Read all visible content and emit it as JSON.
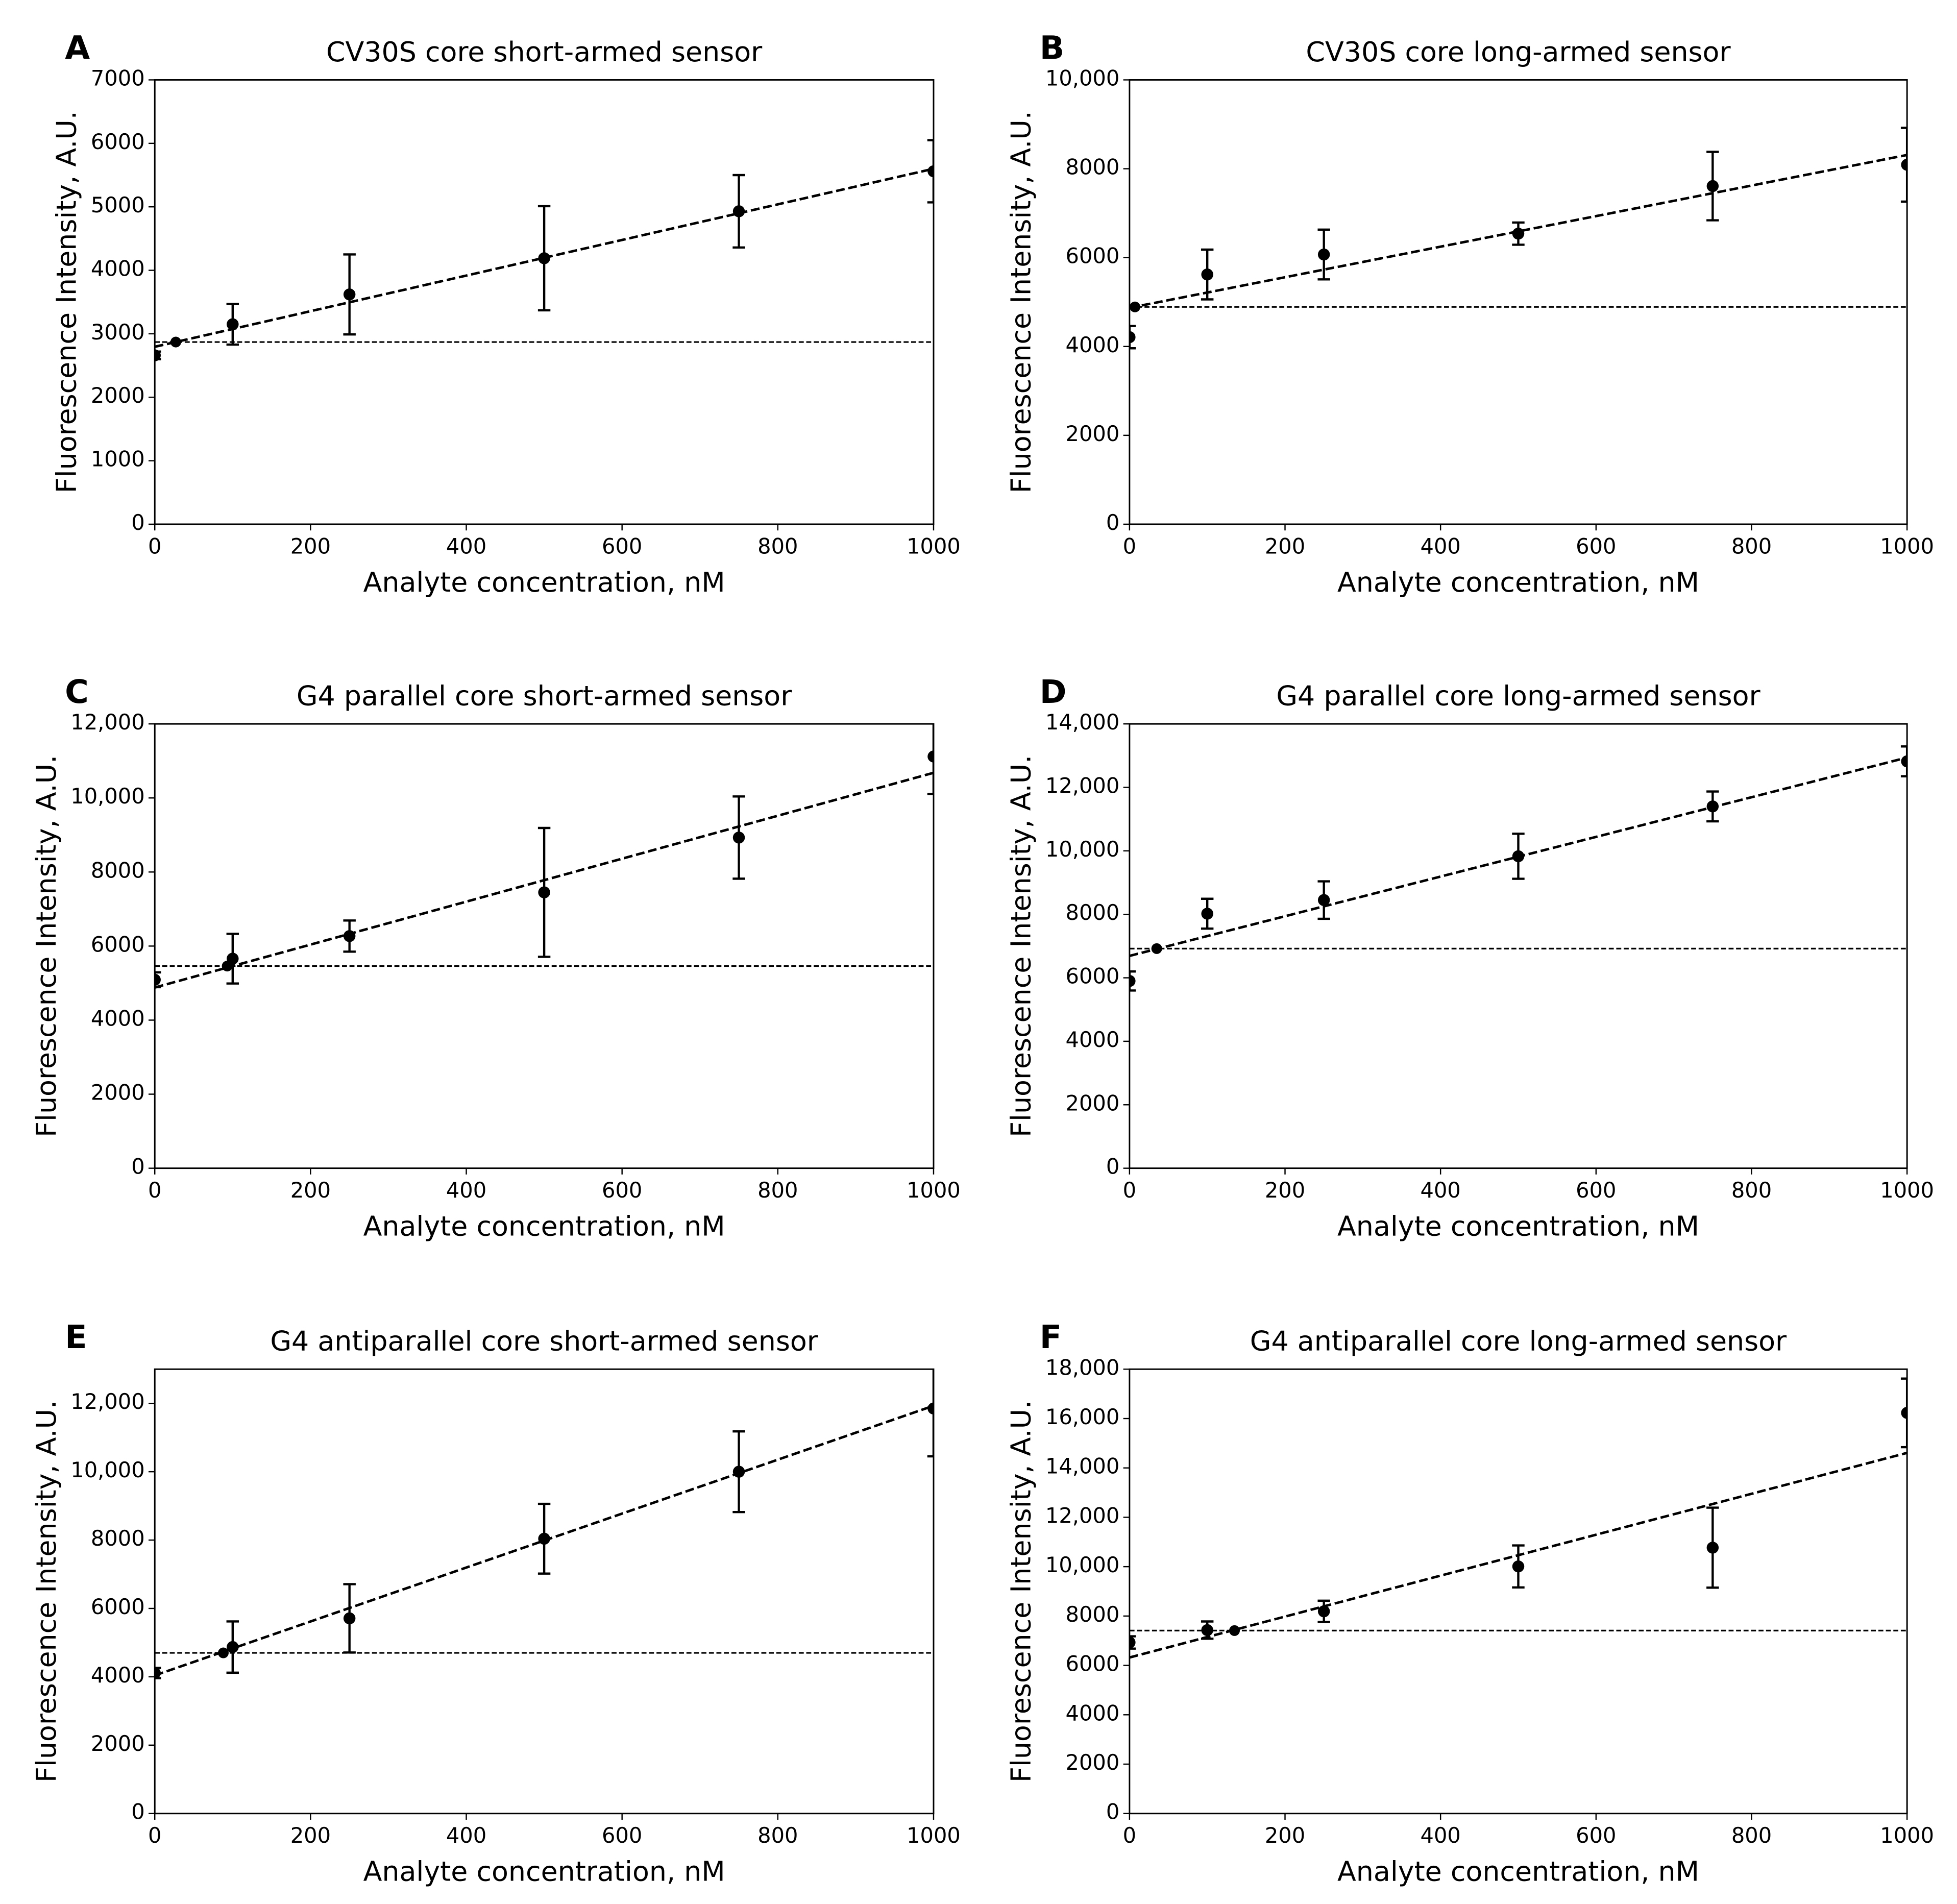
{
  "chart_data": [
    {
      "type": "scatter",
      "panel": "A",
      "title": "CV30S core short-armed sensor",
      "xlabel": "Analyte concentration, nM",
      "ylabel": "Fluorescence Intensity, A.U.",
      "color": "#000000",
      "x": [
        0,
        100,
        250,
        500,
        750,
        1000
      ],
      "values": [
        2660,
        3150,
        3620,
        4190,
        4930,
        5560
      ],
      "errors": [
        60,
        320,
        630,
        820,
        570,
        490
      ],
      "lod": {
        "x": 27,
        "y": 2870
      },
      "threshold": 2870,
      "fit": {
        "x": [
          0,
          1000
        ],
        "values": [
          2795,
          5600
        ]
      },
      "xlim": [
        0,
        1000
      ],
      "xticks": [
        0,
        200,
        400,
        600,
        800,
        1000
      ],
      "ylim": [
        0,
        7000
      ],
      "yticks": [
        0,
        1000,
        2000,
        3000,
        4000,
        5000,
        6000,
        7000
      ]
    },
    {
      "type": "scatter",
      "panel": "B",
      "title": "CV30S core long-armed sensor",
      "xlabel": "Analyte concentration, nM",
      "ylabel": "Fluorescence Intensity, A.U.",
      "color": "#000000",
      "x": [
        0,
        100,
        250,
        500,
        750,
        1000
      ],
      "values": [
        4210,
        5620,
        6070,
        6540,
        7610,
        8090
      ],
      "errors": [
        250,
        560,
        560,
        250,
        770,
        830
      ],
      "lod": {
        "x": 7,
        "y": 4890
      },
      "threshold": 4890,
      "fit": {
        "x": [
          0,
          1000
        ],
        "values": [
          4870,
          8310
        ]
      },
      "xlim": [
        0,
        1000
      ],
      "xticks": [
        0,
        200,
        400,
        600,
        800,
        1000
      ],
      "ylim": [
        0,
        10000
      ],
      "yticks": [
        0,
        2000,
        4000,
        6000,
        8000,
        {
          "value": 10000,
          "label": "10,000"
        }
      ]
    },
    {
      "type": "scatter",
      "panel": "C",
      "title": "G4 parallel core short-armed sensor",
      "xlabel": "Analyte concentration, nM",
      "ylabel": "Fluorescence Intensity, A.U.",
      "color": "#000000",
      "x": [
        0,
        100,
        250,
        500,
        750,
        1000
      ],
      "values": [
        5090,
        5660,
        6270,
        7450,
        8930,
        11120
      ],
      "errors": [
        200,
        670,
        420,
        1740,
        1110,
        1010
      ],
      "lod": {
        "x": 93,
        "y": 5460
      },
      "threshold": 5460,
      "fit": {
        "x": [
          0,
          1000
        ],
        "values": [
          4880,
          10680
        ]
      },
      "xlim": [
        0,
        1000
      ],
      "xticks": [
        0,
        200,
        400,
        600,
        800,
        1000
      ],
      "ylim": [
        0,
        12000
      ],
      "yticks": [
        0,
        2000,
        4000,
        6000,
        8000,
        {
          "value": 10000,
          "label": "10,000"
        },
        {
          "value": 12000,
          "label": "12,000"
        }
      ]
    },
    {
      "type": "scatter",
      "panel": "D",
      "title": "G4 parallel core long-armed sensor",
      "xlabel": "Analyte concentration, nM",
      "ylabel": "Fluorescence Intensity, A.U.",
      "color": "#000000",
      "x": [
        0,
        100,
        250,
        500,
        750,
        1000
      ],
      "values": [
        5900,
        8020,
        8450,
        9830,
        11400,
        12820
      ],
      "errors": [
        300,
        470,
        590,
        710,
        470,
        470
      ],
      "lod": {
        "x": 35,
        "y": 6920
      },
      "threshold": 6920,
      "fit": {
        "x": [
          0,
          1000
        ],
        "values": [
          6690,
          12940
        ]
      },
      "xlim": [
        0,
        1000
      ],
      "xticks": [
        0,
        200,
        400,
        600,
        800,
        1000
      ],
      "ylim": [
        0,
        14000
      ],
      "yticks": [
        0,
        2000,
        4000,
        6000,
        8000,
        {
          "value": 10000,
          "label": "10,000"
        },
        {
          "value": 12000,
          "label": "12,000"
        },
        {
          "value": 14000,
          "label": "14,000"
        }
      ]
    },
    {
      "type": "scatter",
      "panel": "E",
      "title": "G4 antiparallel core short-armed sensor",
      "xlabel": "Analyte concentration, nM",
      "ylabel": "Fluorescence Intensity, A.U.",
      "color": "#000000",
      "x": [
        0,
        100,
        250,
        500,
        750,
        1000
      ],
      "values": [
        4110,
        4870,
        5710,
        8040,
        10000,
        11850
      ],
      "errors": [
        150,
        750,
        1000,
        1020,
        1180,
        1400
      ],
      "lod": {
        "x": 88,
        "y": 4700
      },
      "threshold": 4700,
      "fit": {
        "x": [
          0,
          1000
        ],
        "values": [
          4040,
          11930
        ]
      },
      "xlim": [
        0,
        1000
      ],
      "xticks": [
        0,
        200,
        400,
        600,
        800,
        1000
      ],
      "ylim": [
        0,
        13000
      ],
      "yticks": [
        0,
        2000,
        4000,
        6000,
        8000,
        {
          "value": 10000,
          "label": "10,000"
        },
        {
          "value": 12000,
          "label": "12,000"
        }
      ]
    },
    {
      "type": "scatter",
      "panel": "F",
      "title": "G4 antiparallel core long-armed sensor",
      "xlabel": "Analyte concentration, nM",
      "ylabel": "Fluorescence Intensity, A.U.",
      "color": "#000000",
      "x": [
        0,
        100,
        250,
        500,
        750,
        1000
      ],
      "values": [
        6930,
        7430,
        8190,
        10010,
        10770,
        16230
      ],
      "errors": [
        250,
        350,
        430,
        850,
        1620,
        1390
      ],
      "lod": {
        "x": 135,
        "y": 7410
      },
      "threshold": 7410,
      "fit": {
        "x": [
          0,
          1000
        ],
        "values": [
          6320,
          14610
        ]
      },
      "xlim": [
        0,
        1000
      ],
      "xticks": [
        0,
        200,
        400,
        600,
        800,
        1000
      ],
      "ylim": [
        0,
        18000
      ],
      "yticks": [
        0,
        2000,
        4000,
        6000,
        8000,
        {
          "value": 10000,
          "label": "10,000"
        },
        {
          "value": 12000,
          "label": "12,000"
        },
        {
          "value": 14000,
          "label": "14,000"
        },
        {
          "value": 16000,
          "label": "16,000"
        },
        {
          "value": 18000,
          "label": "18,000"
        }
      ]
    }
  ]
}
